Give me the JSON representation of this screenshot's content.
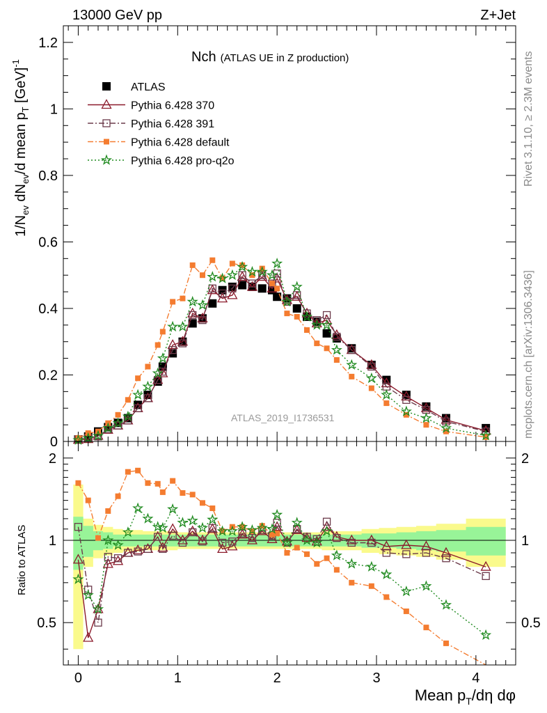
{
  "header": {
    "left": "13000 GeV pp",
    "right": "Z+Jet"
  },
  "side_labels": {
    "rivet": "Rivet 3.1.10, ≥ 2.3M events",
    "mcplots": "mcplots.cern.ch [arXiv:1306.3436]"
  },
  "colors": {
    "atlas": "#000000",
    "p370": "#8b1a2b",
    "p391": "#6b3a4a",
    "pdefault": "#f47c30",
    "pq2o": "#1f8a1f",
    "band_inner": "#98f498",
    "band_outer": "#fafa8c"
  },
  "chart_data": [
    {
      "type": "scatter",
      "panel": "main",
      "title": "Nch",
      "subtitle": "(ATLAS UE in Z production)",
      "analysis_label": "ATLAS_2019_I1736531",
      "ylabel": "1/N_ev dN_ev/d mean p_T [GeV]^-1",
      "ylim": [
        0,
        1.25
      ],
      "xlim": [
        -0.15,
        4.4
      ],
      "yticks": [
        "0",
        "0.2",
        "0.4",
        "0.6",
        "0.8",
        "1",
        "1.2"
      ],
      "legend_position": "top-left",
      "x": [
        0.0,
        0.1,
        0.2,
        0.3,
        0.4,
        0.5,
        0.6,
        0.7,
        0.8,
        0.85,
        0.95,
        1.05,
        1.15,
        1.25,
        1.35,
        1.45,
        1.55,
        1.65,
        1.75,
        1.85,
        1.95,
        2.0,
        2.1,
        2.2,
        2.3,
        2.4,
        2.5,
        2.6,
        2.75,
        2.95,
        3.1,
        3.3,
        3.5,
        3.7,
        4.1
      ],
      "series": [
        {
          "name": "ATLAS",
          "marker": "square-filled",
          "values": [
            0.006,
            0.015,
            0.03,
            0.043,
            0.056,
            0.07,
            0.11,
            0.14,
            0.18,
            0.225,
            0.265,
            0.3,
            0.355,
            0.37,
            0.415,
            0.455,
            0.465,
            0.47,
            0.465,
            0.46,
            0.455,
            0.435,
            0.43,
            0.4,
            0.375,
            0.36,
            0.325,
            0.31,
            0.28,
            0.23,
            0.185,
            0.14,
            0.105,
            0.07,
            0.04
          ]
        },
        {
          "name": "Pythia 6.428 370",
          "marker": "triangle-open",
          "line": "solid",
          "values": [
            0.005,
            0.007,
            0.017,
            0.035,
            0.048,
            0.063,
            0.1,
            0.13,
            0.185,
            0.205,
            0.29,
            0.3,
            0.385,
            0.37,
            0.455,
            0.43,
            0.44,
            0.495,
            0.465,
            0.495,
            0.46,
            0.49,
            0.425,
            0.435,
            0.385,
            0.355,
            0.365,
            0.32,
            0.275,
            0.23,
            0.175,
            0.135,
            0.1,
            0.065,
            0.032
          ]
        },
        {
          "name": "Pythia 6.428 391",
          "marker": "square-open",
          "line": "dashdot",
          "values": [
            0.007,
            0.01,
            0.015,
            0.037,
            0.048,
            0.063,
            0.1,
            0.13,
            0.185,
            0.21,
            0.275,
            0.295,
            0.38,
            0.365,
            0.46,
            0.445,
            0.46,
            0.5,
            0.475,
            0.5,
            0.475,
            0.505,
            0.42,
            0.44,
            0.385,
            0.365,
            0.38,
            0.315,
            0.275,
            0.225,
            0.165,
            0.125,
            0.095,
            0.06,
            0.03
          ]
        },
        {
          "name": "Pythia 6.428 default",
          "marker": "square-filled-small",
          "line": "dashdot",
          "values": [
            0.01,
            0.025,
            0.03,
            0.055,
            0.08,
            0.125,
            0.19,
            0.225,
            0.29,
            0.33,
            0.42,
            0.43,
            0.53,
            0.5,
            0.545,
            0.49,
            0.535,
            0.53,
            0.5,
            0.52,
            0.475,
            0.46,
            0.385,
            0.375,
            0.335,
            0.295,
            0.28,
            0.245,
            0.195,
            0.16,
            0.115,
            0.08,
            0.05,
            0.03,
            0.013
          ]
        },
        {
          "name": "Pythia 6.428 pro-q2o",
          "marker": "star",
          "line": "dotted",
          "values": [
            0.004,
            0.01,
            0.017,
            0.04,
            0.055,
            0.075,
            0.14,
            0.165,
            0.205,
            0.25,
            0.345,
            0.345,
            0.42,
            0.41,
            0.495,
            0.49,
            0.5,
            0.525,
            0.51,
            0.51,
            0.5,
            0.535,
            0.42,
            0.465,
            0.375,
            0.35,
            0.35,
            0.275,
            0.23,
            0.19,
            0.14,
            0.09,
            0.07,
            0.04,
            0.018
          ]
        }
      ]
    },
    {
      "type": "scatter",
      "panel": "ratio",
      "ylabel": "Ratio to ATLAS",
      "xlabel": "Mean p_T/dη dφ",
      "ylim": [
        0.35,
        2.3
      ],
      "yscale": "log",
      "yticks": [
        "0.5",
        "1",
        "2"
      ],
      "xticks": [
        "0",
        "1",
        "2",
        "3",
        "4"
      ],
      "band_inner": [
        0.22,
        0.13,
        0.08,
        0.07,
        0.05,
        0.05,
        0.05,
        0.05,
        0.05,
        0.05,
        0.05,
        0.05,
        0.05,
        0.05,
        0.05,
        0.05,
        0.05,
        0.05,
        0.05,
        0.05,
        0.05,
        0.05,
        0.05,
        0.05,
        0.05,
        0.05,
        0.05,
        0.05,
        0.05,
        0.06,
        0.06,
        0.07,
        0.08,
        0.09,
        0.12
      ],
      "band_outer": [
        0.6,
        0.2,
        0.14,
        0.12,
        0.1,
        0.09,
        0.09,
        0.08,
        0.08,
        0.08,
        0.08,
        0.07,
        0.07,
        0.07,
        0.07,
        0.07,
        0.07,
        0.07,
        0.07,
        0.07,
        0.07,
        0.07,
        0.07,
        0.07,
        0.07,
        0.07,
        0.08,
        0.08,
        0.08,
        0.1,
        0.11,
        0.12,
        0.13,
        0.15,
        0.2
      ],
      "series": [
        {
          "name": "Pythia 6.428 370",
          "values": [
            0.85,
            0.44,
            0.56,
            0.82,
            0.84,
            0.9,
            0.92,
            0.93,
            1.03,
            0.94,
            1.1,
            1.0,
            1.08,
            1.0,
            1.1,
            0.93,
            0.95,
            1.05,
            1.0,
            1.08,
            1.01,
            1.12,
            0.99,
            1.09,
            1.02,
            0.99,
            1.12,
            1.03,
            1.0,
            1.0,
            0.95,
            0.96,
            0.95,
            0.9,
            0.8
          ]
        },
        {
          "name": "Pythia 6.428 391",
          "values": [
            1.12,
            0.66,
            0.5,
            0.87,
            0.86,
            0.9,
            0.91,
            0.93,
            1.03,
            0.93,
            1.04,
            0.98,
            1.07,
            0.99,
            1.11,
            0.98,
            0.99,
            1.06,
            1.02,
            1.09,
            1.04,
            1.16,
            0.98,
            1.1,
            1.03,
            1.01,
            1.17,
            1.02,
            0.98,
            0.98,
            0.9,
            0.89,
            0.9,
            0.86,
            0.74
          ]
        },
        {
          "name": "Pythia 6.428 default",
          "values": [
            1.62,
            1.4,
            1.02,
            1.28,
            1.45,
            1.78,
            1.8,
            1.62,
            1.61,
            1.5,
            1.65,
            1.49,
            1.47,
            1.37,
            1.31,
            1.08,
            1.12,
            1.12,
            1.08,
            1.13,
            1.05,
            1.06,
            0.9,
            0.94,
            0.89,
            0.82,
            0.86,
            0.78,
            0.7,
            0.68,
            0.62,
            0.55,
            0.48,
            0.42,
            0.33
          ]
        },
        {
          "name": "Pythia 6.428 pro-q2o",
          "values": [
            0.72,
            0.63,
            0.56,
            1.0,
            0.96,
            1.07,
            1.31,
            1.2,
            1.12,
            1.11,
            1.3,
            1.16,
            1.18,
            1.11,
            1.19,
            1.08,
            1.08,
            1.12,
            1.09,
            1.11,
            1.1,
            1.24,
            0.98,
            1.16,
            1.0,
            0.98,
            1.08,
            0.88,
            0.82,
            0.8,
            0.75,
            0.65,
            0.68,
            0.58,
            0.45
          ]
        }
      ]
    }
  ]
}
